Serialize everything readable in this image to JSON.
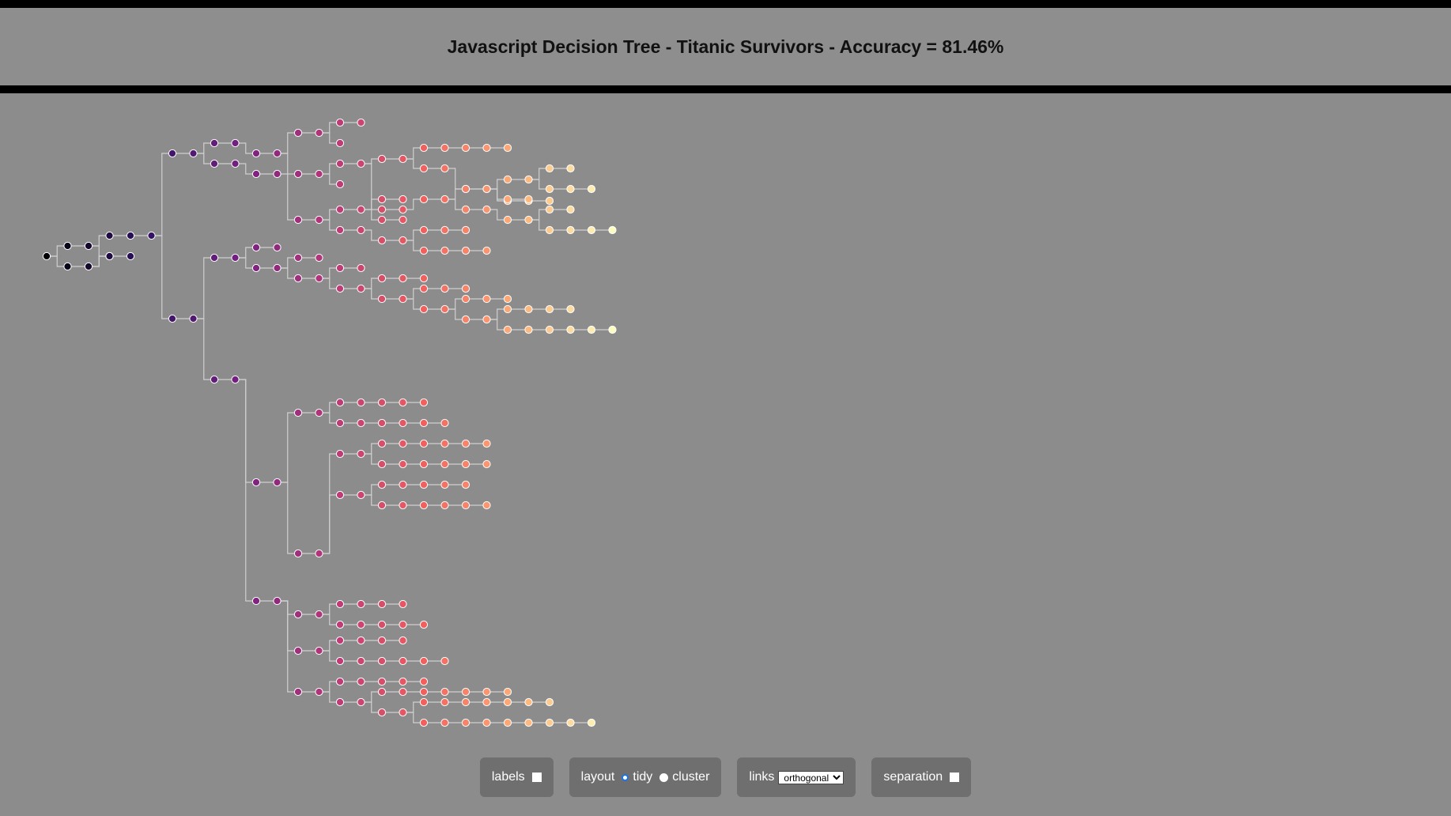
{
  "header": {
    "title": "Javascript Decision Tree - Titanic Survivors - Accuracy = 81.46%"
  },
  "controls": {
    "labels_label": "labels",
    "labels_checked": false,
    "layout_label": "layout",
    "layout_options": [
      "tidy",
      "cluster"
    ],
    "layout_selected": "tidy",
    "links_label": "links",
    "links_selected": "orthogonal",
    "separation_label": "separation",
    "separation_checked": false
  },
  "tree": {
    "link_color": "#cfcfcf",
    "node_stroke": "#ffffff",
    "palette": [
      "#000004",
      "#2c115f",
      "#721f81",
      "#b73779",
      "#f1605d",
      "#feb078",
      "#fcfdbf"
    ]
  }
}
